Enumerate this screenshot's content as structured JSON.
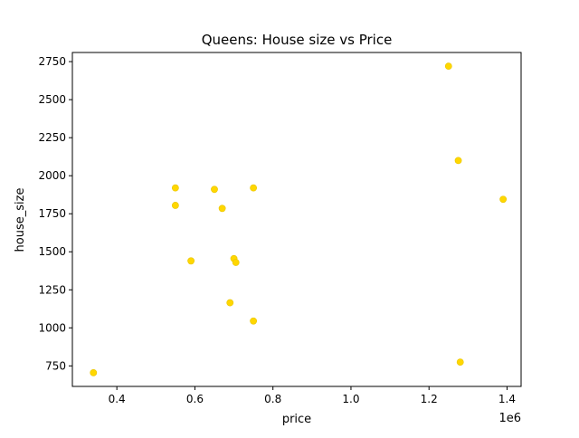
{
  "chart_data": {
    "type": "scatter",
    "title": "Queens: House size vs Price",
    "xlabel": "price",
    "ylabel": "house_size",
    "x_offset_label": "1e6",
    "xlim": [
      0.286,
      1.436
    ],
    "ylim": [
      615,
      2810
    ],
    "xticks": [
      0.4,
      0.6,
      0.8,
      1.0,
      1.2,
      1.4
    ],
    "xtick_labels": [
      "0.4",
      "0.6",
      "0.8",
      "1.0",
      "1.2",
      "1.4"
    ],
    "yticks": [
      750,
      1000,
      1250,
      1500,
      1750,
      2000,
      2250,
      2500,
      2750
    ],
    "ytick_labels": [
      "750",
      "1000",
      "1250",
      "1500",
      "1750",
      "2000",
      "2250",
      "2500",
      "2750"
    ],
    "grid": false,
    "marker_color": "#FFD700",
    "points": [
      {
        "x": 0.34,
        "y": 705
      },
      {
        "x": 0.55,
        "y": 1920
      },
      {
        "x": 0.55,
        "y": 1805
      },
      {
        "x": 0.59,
        "y": 1440
      },
      {
        "x": 0.65,
        "y": 1910
      },
      {
        "x": 0.67,
        "y": 1785
      },
      {
        "x": 0.69,
        "y": 1165
      },
      {
        "x": 0.7,
        "y": 1455
      },
      {
        "x": 0.705,
        "y": 1430
      },
      {
        "x": 0.75,
        "y": 1920
      },
      {
        "x": 0.75,
        "y": 1045
      },
      {
        "x": 1.25,
        "y": 2720
      },
      {
        "x": 1.275,
        "y": 2100
      },
      {
        "x": 1.28,
        "y": 775
      },
      {
        "x": 1.39,
        "y": 1845
      }
    ]
  }
}
